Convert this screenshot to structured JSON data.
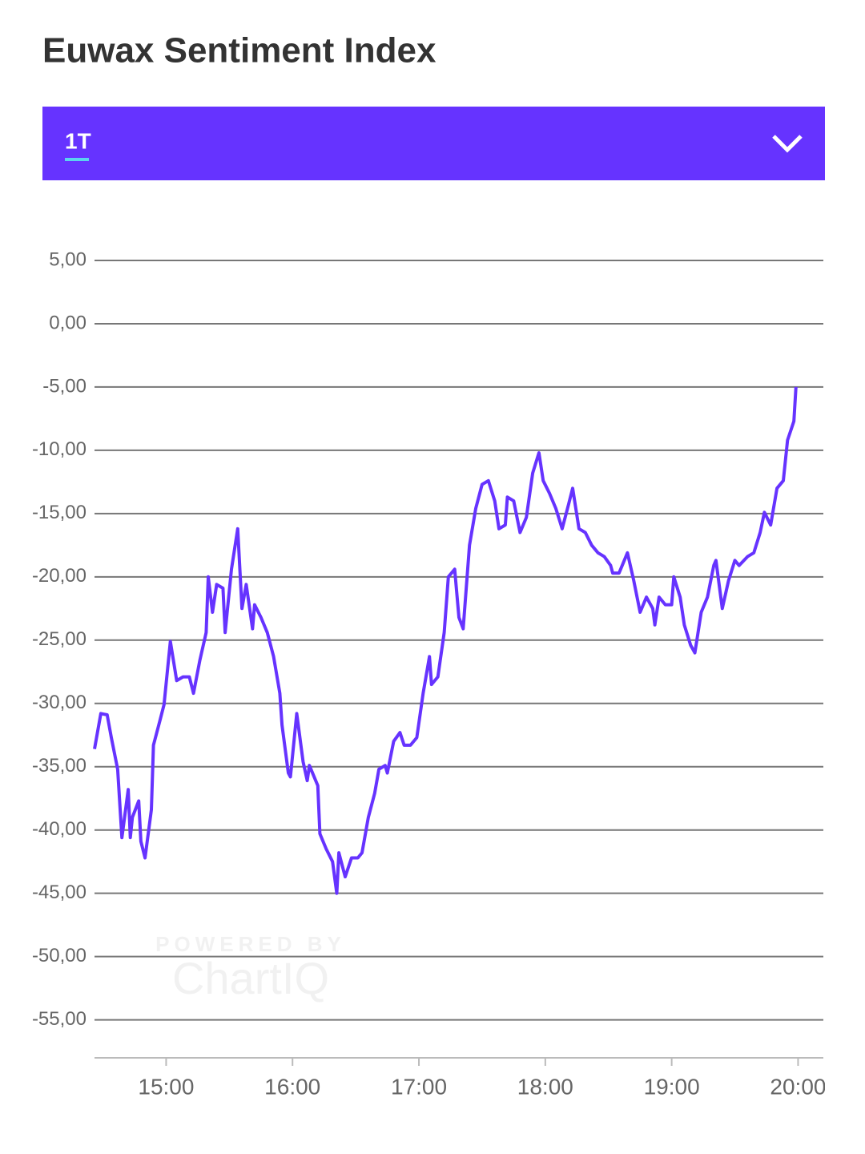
{
  "header": {
    "title": "Euwax Sentiment Index",
    "period": "1T"
  },
  "watermark": {
    "line1": "POWERED BY",
    "line2": "ChartIQ"
  },
  "chart_data": {
    "type": "line",
    "color": "#6633ff",
    "grid": true,
    "x": [
      "14:26",
      "14:29",
      "14:32",
      "14:34",
      "14:37",
      "14:39",
      "14:42",
      "14:43",
      "14:44",
      "14:47",
      "14:48",
      "14:50",
      "14:53",
      "14:54",
      "14:57",
      "14:59",
      "15:02",
      "15:05",
      "15:08",
      "15:11",
      "15:13",
      "15:16",
      "15:19",
      "15:20",
      "15:22",
      "15:24",
      "15:27",
      "15:28",
      "15:31",
      "15:34",
      "15:36",
      "15:38",
      "15:41",
      "15:42",
      "15:45",
      "15:48",
      "15:51",
      "15:54",
      "15:55",
      "15:58",
      "15:59",
      "16:02",
      "16:05",
      "16:07",
      "16:08",
      "16:12",
      "16:13",
      "16:16",
      "16:19",
      "16:21",
      "16:22",
      "16:25",
      "16:28",
      "16:31",
      "16:33",
      "16:36",
      "16:39",
      "16:41",
      "16:44",
      "16:45",
      "16:48",
      "16:51",
      "16:53",
      "16:56",
      "16:59",
      "17:02",
      "17:05",
      "17:06",
      "17:09",
      "17:12",
      "17:14",
      "17:17",
      "17:19",
      "17:21",
      "17:24",
      "17:27",
      "17:30",
      "17:33",
      "17:36",
      "17:38",
      "17:41",
      "17:42",
      "17:45",
      "17:48",
      "17:51",
      "17:54",
      "17:57",
      "17:59",
      "18:02",
      "18:05",
      "18:08",
      "18:11",
      "18:13",
      "18:16",
      "18:19",
      "18:22",
      "18:25",
      "18:28",
      "18:31",
      "18:32",
      "18:35",
      "18:39",
      "18:42",
      "18:45",
      "18:48",
      "18:51",
      "18:52",
      "18:54",
      "18:57",
      "19:00",
      "19:01",
      "19:04",
      "19:06",
      "19:09",
      "19:11",
      "19:14",
      "19:17",
      "19:20",
      "19:21",
      "19:24",
      "19:27",
      "19:30",
      "19:32",
      "19:36",
      "19:39",
      "19:42",
      "19:44",
      "19:47",
      "19:50",
      "19:53",
      "19:55",
      "19:58",
      "19:59"
    ],
    "values": [
      -33.6,
      -30.8,
      -30.9,
      -32.7,
      -35.2,
      -40.6,
      -36.8,
      -40.6,
      -39.0,
      -37.7,
      -40.9,
      -42.2,
      -38.4,
      -33.3,
      -31.4,
      -30.1,
      -25.1,
      -28.2,
      -27.9,
      -27.9,
      -29.2,
      -26.6,
      -24.4,
      -20.0,
      -22.8,
      -20.6,
      -20.9,
      -24.4,
      -19.4,
      -16.2,
      -22.5,
      -20.6,
      -24.1,
      -22.2,
      -23.2,
      -24.4,
      -26.3,
      -29.2,
      -31.7,
      -35.5,
      -35.8,
      -30.8,
      -34.6,
      -36.1,
      -34.9,
      -36.5,
      -40.3,
      -41.5,
      -42.5,
      -45.0,
      -41.8,
      -43.7,
      -42.2,
      -42.2,
      -41.8,
      -39.0,
      -37.1,
      -35.2,
      -34.9,
      -35.5,
      -33.0,
      -32.3,
      -33.3,
      -33.3,
      -32.7,
      -29.2,
      -26.3,
      -28.5,
      -27.9,
      -24.4,
      -20.0,
      -19.4,
      -23.2,
      -24.1,
      -17.5,
      -14.6,
      -12.7,
      -12.4,
      -14.0,
      -16.2,
      -15.9,
      -13.7,
      -14.0,
      -16.5,
      -15.3,
      -11.8,
      -10.2,
      -12.4,
      -13.4,
      -14.6,
      -16.2,
      -14.3,
      -13.0,
      -16.2,
      -16.5,
      -17.5,
      -18.1,
      -18.4,
      -19.1,
      -19.7,
      -19.7,
      -18.1,
      -20.3,
      -22.8,
      -21.6,
      -22.5,
      -23.8,
      -21.6,
      -22.2,
      -22.2,
      -20.0,
      -21.6,
      -23.8,
      -25.4,
      -26.0,
      -22.8,
      -21.6,
      -19.1,
      -18.7,
      -22.5,
      -20.3,
      -18.7,
      -19.1,
      -18.4,
      -18.1,
      -16.5,
      -14.9,
      -15.9,
      -13.0,
      -12.4,
      -9.2,
      -7.7,
      -5.0
    ],
    "xlim": [
      "14:26",
      "20:12"
    ],
    "xticks": [
      "15:00",
      "16:00",
      "17:00",
      "18:00",
      "19:00",
      "20:00"
    ],
    "ylim": [
      -58,
      10
    ],
    "yticks": [
      {
        "value": 5,
        "label": "5,00"
      },
      {
        "value": 0,
        "label": "0,00"
      },
      {
        "value": -5,
        "label": "-5,00"
      },
      {
        "value": -10,
        "label": "-10,00"
      },
      {
        "value": -15,
        "label": "-15,00"
      },
      {
        "value": -20,
        "label": "-20,00"
      },
      {
        "value": -25,
        "label": "-25,00"
      },
      {
        "value": -30,
        "label": "-30,00"
      },
      {
        "value": -35,
        "label": "-35,00"
      },
      {
        "value": -40,
        "label": "-40,00"
      },
      {
        "value": -45,
        "label": "-45,00"
      },
      {
        "value": -50,
        "label": "-50,00"
      },
      {
        "value": -55,
        "label": "-55,00"
      }
    ]
  }
}
